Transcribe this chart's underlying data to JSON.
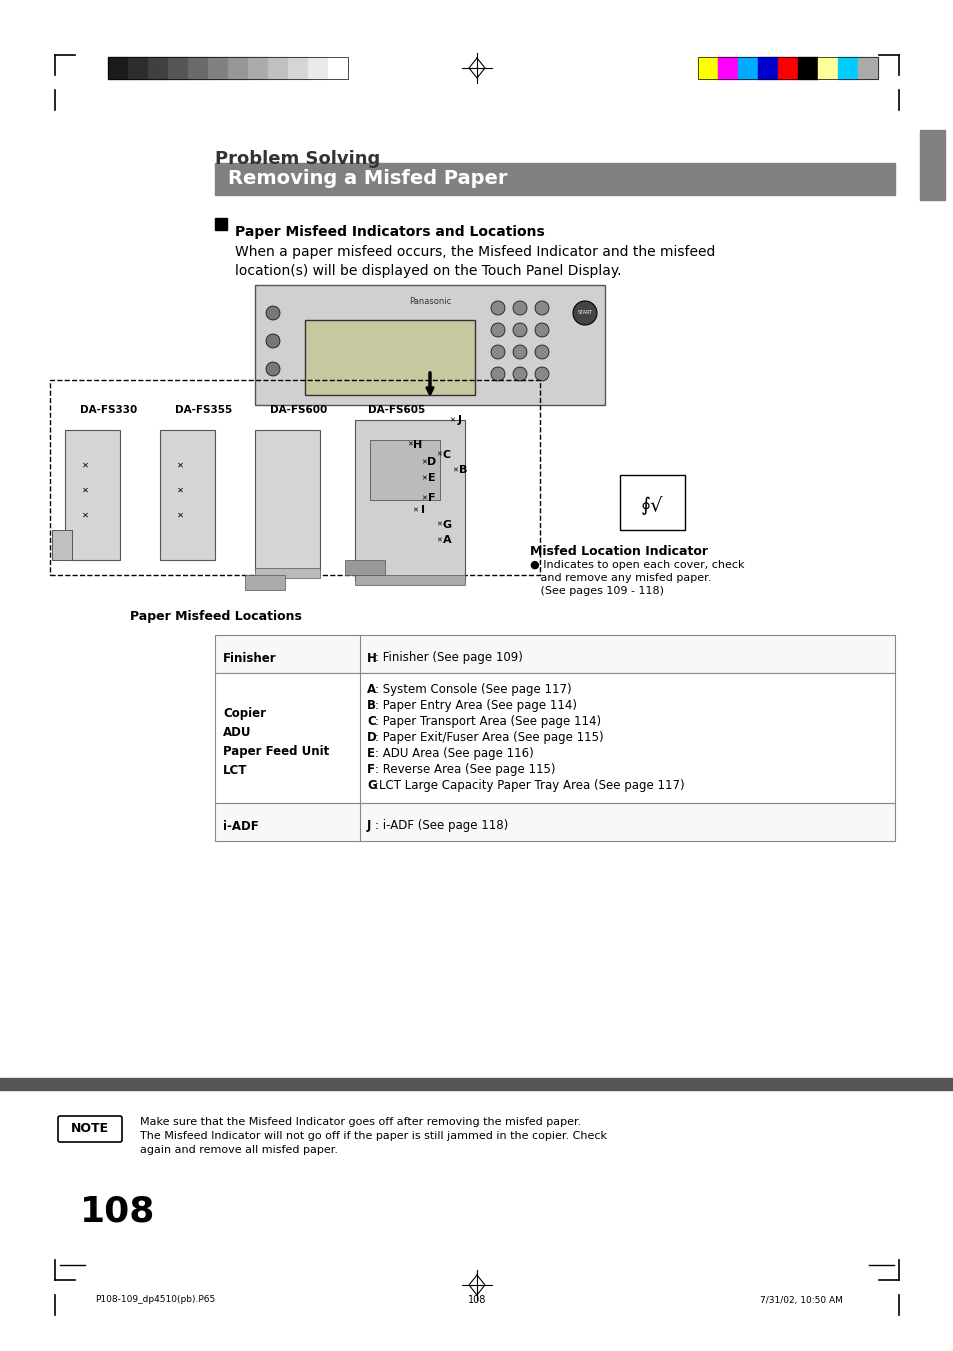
{
  "bg_color": "#ffffff",
  "page_number": "108",
  "section_title": "Problem Solving",
  "section_header": "Removing a Misfed Paper",
  "header_bg": "#808080",
  "header_text_color": "#ffffff",
  "subsection_title": "Paper Misfeed Indicators and Locations",
  "subsection_body": "When a paper misfeed occurs, the Misfeed Indicator and the misfeed\nlocation(s) will be displayed on the Touch Panel Display.",
  "table_title": "Paper Misfeed Locations",
  "table_rows": [
    {
      "left": "Finisher",
      "right_bold": "H",
      "right_text": ": Finisher (See page 109)"
    },
    {
      "left": "Copier\nADU\nPaper Feed Unit\nLCT",
      "right_items": [
        {
          "bold": "A",
          "text": ": System Console (See page 117)"
        },
        {
          "bold": "B",
          "text": ": Paper Entry Area (See page 114)"
        },
        {
          "bold": "C",
          "text": ": Paper Transport Area (See page 114)"
        },
        {
          "bold": "D",
          "text": ": Paper Exit/Fuser Area (See page 115)"
        },
        {
          "bold": "E",
          "text": ": ADU Area (See page 116)"
        },
        {
          "bold": "F",
          "text": ": Reverse Area (See page 115)"
        },
        {
          "bold": "G",
          "text": ":LCT Large Capacity Paper Tray Area (See page 117)"
        }
      ]
    },
    {
      "left": "i-ADF",
      "right_bold": "J",
      "right_text": ": i-ADF (See page 118)"
    }
  ],
  "note_text": "Make sure that the Misfeed Indicator goes off after removing the misfed paper.\nThe Misfeed Indicator will not go off if the paper is still jammed in the copier. Check\nagain and remove all misfed paper.",
  "footer_left": "P108-109_dp4510(pb).P65",
  "footer_center": "108",
  "footer_right": "7/31/02, 10:50 AM",
  "indicator_label": "Misfed Location Indicator",
  "indicator_text": "● Indicates to open each cover, check\n   and remove any misfed paper.\n   (See pages 109 - 118)",
  "da_labels": [
    "DA-FS330",
    "DA-FS355",
    "DA-FS600",
    "DA-FS605"
  ],
  "color_bar_left": [
    "#1a1a1a",
    "#2d2d2d",
    "#404040",
    "#555555",
    "#6a6a6a",
    "#808080",
    "#969696",
    "#ababab",
    "#c0c0c0",
    "#d5d5d5",
    "#eaeaea",
    "#ffffff"
  ],
  "color_bar_right": [
    "#ffff00",
    "#ff00ff",
    "#00aaff",
    "#0000cc",
    "#ff0000",
    "#000000",
    "#ffff99",
    "#00ccff",
    "#aaaaaa"
  ]
}
